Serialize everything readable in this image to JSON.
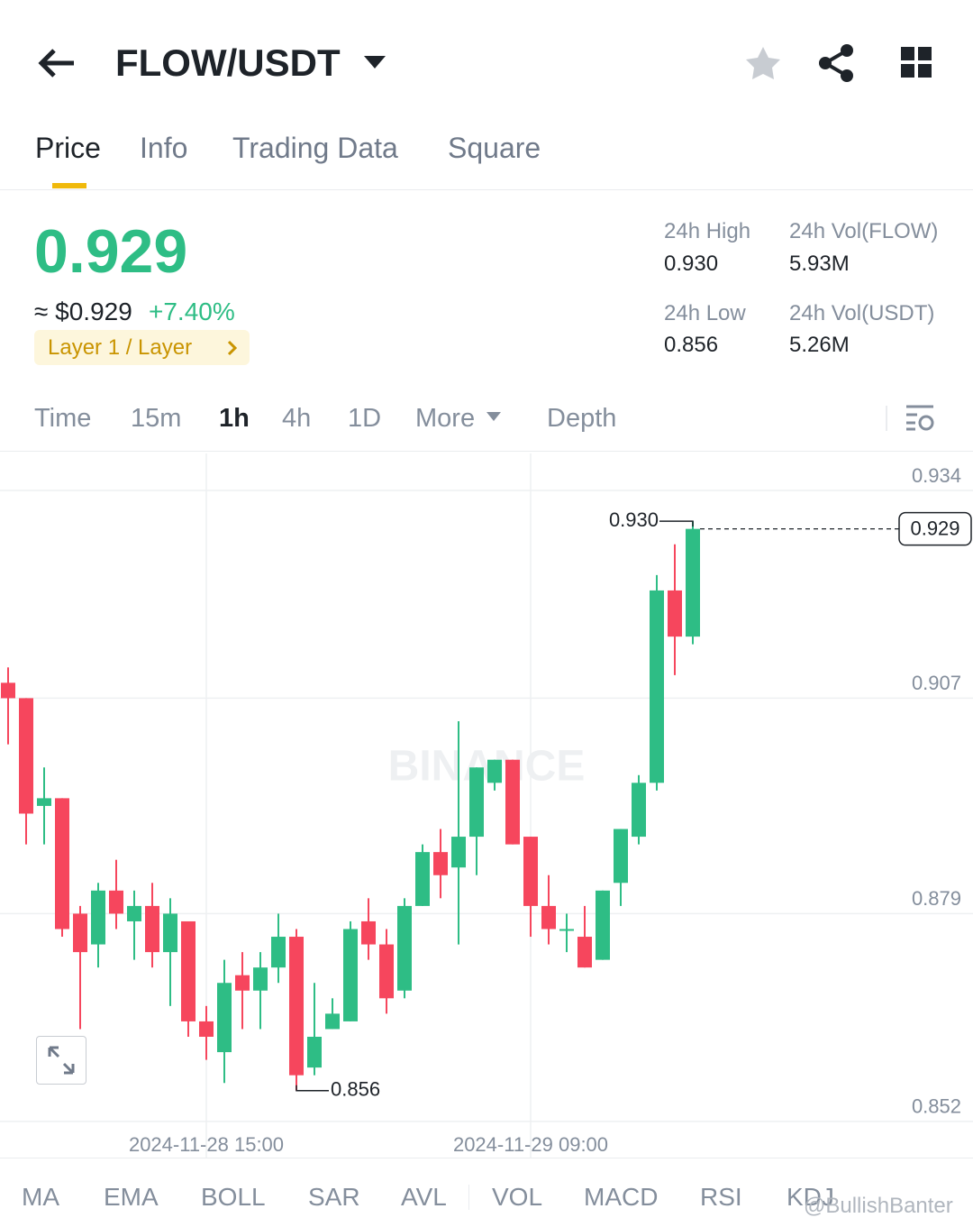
{
  "header": {
    "pair": "FLOW/USDT"
  },
  "tabs": [
    "Price",
    "Info",
    "Trading Data",
    "Square"
  ],
  "price": {
    "last": "0.929",
    "usd": "≈ $0.929",
    "change": "+7.40%",
    "tag": "Layer 1 / Layer"
  },
  "stats": [
    {
      "label": "24h High",
      "value": "0.930"
    },
    {
      "label": "24h Vol(FLOW)",
      "value": "5.93M"
    },
    {
      "label": "24h Low",
      "value": "0.856"
    },
    {
      "label": "24h Vol(USDT)",
      "value": "5.26M"
    }
  ],
  "intervals": [
    "Time",
    "15m",
    "1h",
    "4h",
    "1D",
    "More",
    "Depth"
  ],
  "indicators": [
    "MA",
    "EMA",
    "BOLL",
    "SAR",
    "AVL",
    "VOL",
    "MACD",
    "RSI",
    "KDJ"
  ],
  "watermark": "BINANCE",
  "credit": "@BullishBanter",
  "chart_data": {
    "type": "candlestick",
    "categories": [
      null,
      null,
      null,
      null,
      null,
      null,
      null,
      null,
      null,
      null,
      null,
      "2024-11-28 15:00",
      null,
      null,
      null,
      null,
      null,
      null,
      null,
      null,
      null,
      null,
      null,
      null,
      null,
      null,
      null,
      null,
      null,
      "2024-11-29 09:00",
      null,
      null,
      null,
      null,
      null,
      null,
      null,
      null,
      null
    ],
    "open": [
      0.909,
      0.907,
      0.893,
      0.894,
      0.879,
      0.875,
      0.882,
      0.878,
      0.88,
      0.874,
      0.878,
      0.865,
      0.861,
      0.871,
      0.869,
      0.872,
      0.876,
      0.859,
      0.864,
      0.865,
      0.878,
      0.875,
      0.869,
      0.88,
      0.887,
      0.885,
      0.889,
      0.896,
      0.899,
      0.889,
      0.88,
      0.877,
      0.876,
      0.873,
      0.883,
      0.889,
      0.896,
      0.921,
      0.915
    ],
    "high": [
      0.911,
      0.907,
      0.898,
      0.894,
      0.88,
      0.883,
      0.886,
      0.882,
      0.883,
      0.881,
      0.878,
      0.867,
      0.873,
      0.874,
      0.874,
      0.879,
      0.877,
      0.87,
      0.868,
      0.878,
      0.881,
      0.877,
      0.881,
      0.888,
      0.89,
      0.904,
      0.898,
      0.899,
      0.899,
      0.889,
      0.884,
      0.879,
      0.88,
      0.882,
      0.89,
      0.897,
      0.923,
      0.927,
      0.93
    ],
    "low": [
      0.901,
      0.888,
      0.888,
      0.876,
      0.864,
      0.872,
      0.877,
      0.873,
      0.872,
      0.867,
      0.863,
      0.86,
      0.857,
      0.864,
      0.864,
      0.87,
      0.856,
      0.858,
      0.864,
      0.865,
      0.873,
      0.866,
      0.868,
      0.88,
      0.881,
      0.875,
      0.884,
      0.895,
      0.888,
      0.876,
      0.875,
      0.874,
      0.872,
      0.873,
      0.88,
      0.888,
      0.895,
      0.91,
      0.914
    ],
    "close": [
      0.907,
      0.892,
      0.894,
      0.877,
      0.874,
      0.882,
      0.879,
      0.88,
      0.874,
      0.879,
      0.865,
      0.863,
      0.87,
      0.869,
      0.872,
      0.876,
      0.858,
      0.863,
      0.866,
      0.877,
      0.875,
      0.868,
      0.88,
      0.887,
      0.884,
      0.889,
      0.898,
      0.899,
      0.888,
      0.88,
      0.877,
      0.877,
      0.872,
      0.882,
      0.89,
      0.896,
      0.921,
      0.915,
      0.929
    ],
    "up_color": "#2ebd85",
    "down_color": "#f6465d",
    "ylim": [
      0.8473,
      0.9388
    ],
    "yticks": [
      0.934,
      0.907,
      0.879,
      0.852
    ],
    "grid": true,
    "high_marker": {
      "value": 0.93,
      "label": "0.930"
    },
    "low_marker": {
      "value": 0.856,
      "label": "0.856"
    },
    "last_price": {
      "value": 0.929,
      "label": "0.929"
    }
  }
}
